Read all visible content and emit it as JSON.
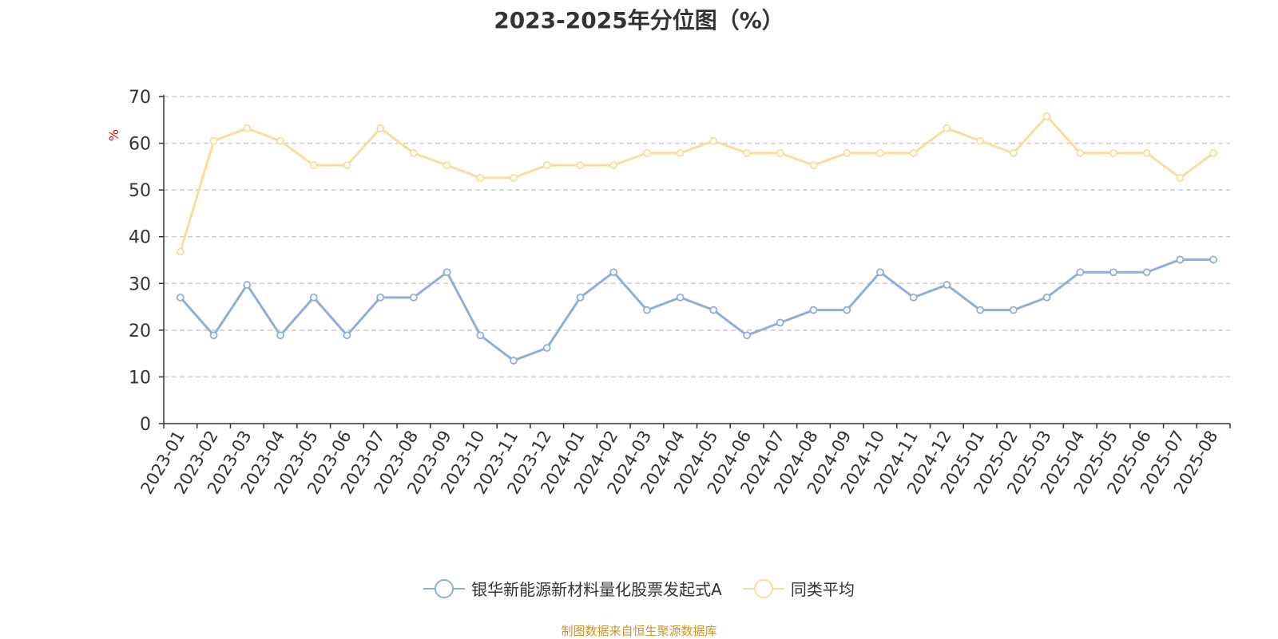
{
  "title": "2023-2025年分位图（%）",
  "source": "制图数据来自恒生聚源数据库",
  "legend": {
    "items": [
      {
        "label": "银华新能源新材料量化股票发起式A",
        "color": "#8fafd9"
      },
      {
        "label": "同类平均",
        "color": "#fbdc9a"
      }
    ]
  },
  "chart_data": {
    "type": "line",
    "title": "2023-2025年分位图（%）",
    "ylabel": "%",
    "xlabel": "",
    "ylim": [
      0,
      70
    ],
    "yticks": [
      0,
      10,
      20,
      30,
      40,
      50,
      60,
      70
    ],
    "grid": true,
    "legend_position": "bottom",
    "categories": [
      "2023-01",
      "2023-02",
      "2023-03",
      "2023-04",
      "2023-05",
      "2023-06",
      "2023-07",
      "2023-08",
      "2023-09",
      "2023-10",
      "2023-11",
      "2023-12",
      "2024-01",
      "2024-02",
      "2024-03",
      "2024-04",
      "2024-05",
      "2024-06",
      "2024-07",
      "2024-08",
      "2024-09",
      "2024-10",
      "2024-11",
      "2024-12",
      "2025-01",
      "2025-02",
      "2025-03",
      "2025-04",
      "2025-05",
      "2025-06",
      "2025-07",
      "2025-08"
    ],
    "series": [
      {
        "name": "银华新能源新材料量化股票发起式A",
        "color": "#8fafd9",
        "values": [
          27.0,
          18.9,
          29.7,
          18.9,
          27.0,
          18.9,
          27.0,
          27.0,
          32.4,
          18.9,
          13.5,
          16.2,
          27.0,
          32.4,
          24.3,
          27.0,
          24.3,
          18.9,
          21.6,
          24.3,
          24.3,
          32.4,
          27.0,
          29.7,
          24.3,
          24.3,
          27.0,
          32.4,
          32.4,
          32.4,
          35.1,
          35.1
        ]
      },
      {
        "name": "同类平均",
        "color": "#fbdc9a",
        "values": [
          36.8,
          60.5,
          63.2,
          60.5,
          55.3,
          55.3,
          63.2,
          57.9,
          55.3,
          52.6,
          52.6,
          55.3,
          55.3,
          55.3,
          57.9,
          57.9,
          60.5,
          57.9,
          57.9,
          55.3,
          57.9,
          57.9,
          57.9,
          63.2,
          60.5,
          57.9,
          65.8,
          57.9,
          57.9,
          57.9,
          52.6,
          57.9
        ]
      }
    ]
  }
}
